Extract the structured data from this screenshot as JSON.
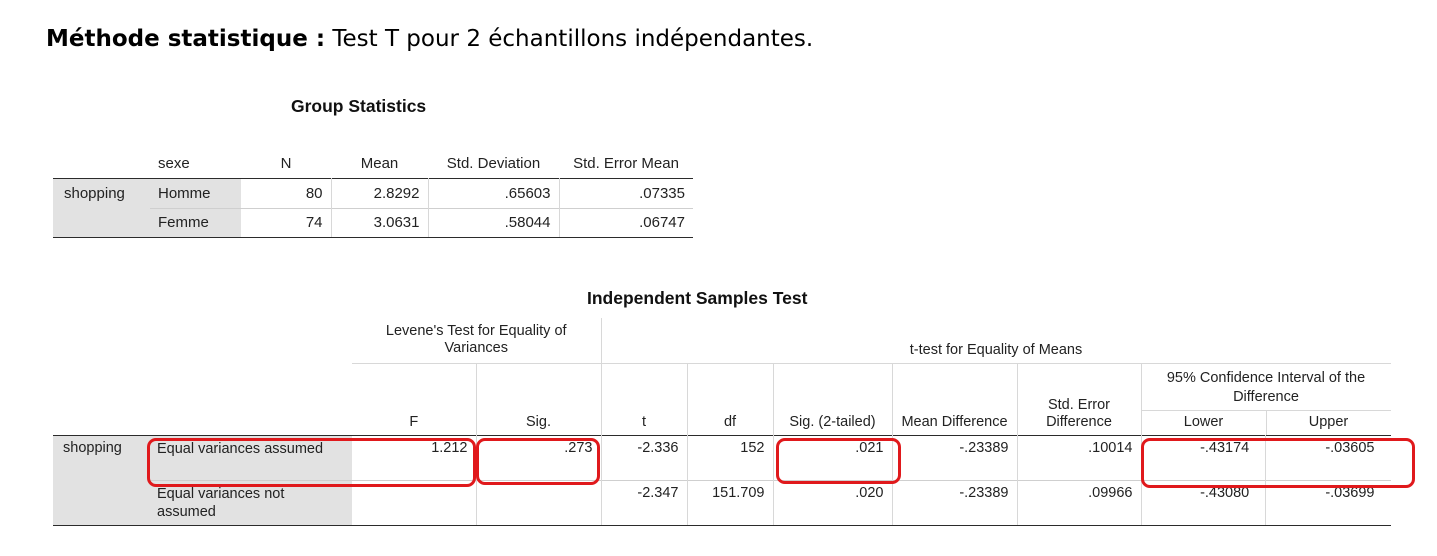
{
  "heading": {
    "bold": "Méthode statistique :",
    "rest": " Test T pour 2 échantillons indépendantes."
  },
  "group_stats": {
    "title": "Group Statistics",
    "headers": [
      "sexe",
      "N",
      "Mean",
      "Std. Deviation",
      "Std. Error Mean"
    ],
    "variable": "shopping",
    "rows": [
      {
        "group": "Homme",
        "n": "80",
        "mean": "2.8292",
        "sd": ".65603",
        "se": ".07335"
      },
      {
        "group": "Femme",
        "n": "74",
        "mean": "3.0631",
        "sd": ".58044",
        "se": ".06747"
      }
    ]
  },
  "ind_test": {
    "title": "Independent Samples Test",
    "levene_header": "Levene's Test for Equality of Variances",
    "ttest_header": "t-test for Equality of Means",
    "ci_header": "95% Confidence Interval of the Difference",
    "col_headers": [
      "F",
      "Sig.",
      "t",
      "df",
      "Sig. (2-tailed)",
      "Mean Difference",
      "Std. Error Difference",
      "Lower",
      "Upper"
    ],
    "variable": "shopping",
    "rows": [
      {
        "label": "Equal variances assumed",
        "f": "1.212",
        "sig": ".273",
        "t": "-2.336",
        "df": "152",
        "sig2": ".021",
        "md": "-.23389",
        "sed": ".10014",
        "lower": "-.43174",
        "upper": "-.03605"
      },
      {
        "label": "Equal variances not assumed",
        "f": "",
        "sig": "",
        "t": "-2.347",
        "df": "151.709",
        "sig2": ".020",
        "md": "-.23389",
        "sed": ".09966",
        "lower": "-.43080",
        "upper": "-.03699"
      }
    ]
  },
  "colors": {
    "highlight": "#e0191c",
    "label_bg": "#e2e2e2"
  }
}
